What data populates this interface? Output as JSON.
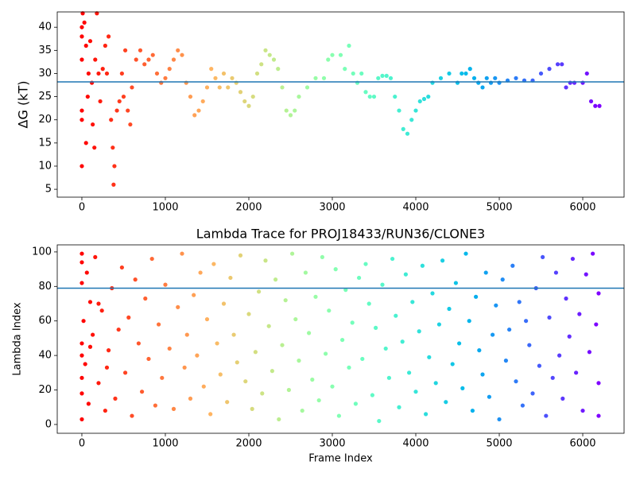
{
  "chart_data": [
    {
      "type": "scatter",
      "ylabel": "ΔG (kT)",
      "colormap": "rainbow_r",
      "hline": 28.2,
      "hline_color": "#1f77b4",
      "xlim": [
        -295,
        6495
      ],
      "xticks": [
        0,
        1000,
        2000,
        3000,
        4000,
        5000,
        6000
      ],
      "ylim": [
        3.3,
        43.3
      ],
      "yticks": [
        5,
        10,
        15,
        20,
        25,
        30,
        35,
        40
      ],
      "x": [
        0,
        0,
        0,
        0,
        0,
        0,
        10,
        30,
        50,
        50,
        70,
        80,
        100,
        120,
        130,
        150,
        160,
        180,
        200,
        220,
        250,
        280,
        300,
        320,
        350,
        370,
        380,
        390,
        420,
        450,
        480,
        500,
        520,
        550,
        580,
        600,
        650,
        700,
        750,
        800,
        850,
        900,
        950,
        1000,
        1050,
        1100,
        1150,
        1200,
        1250,
        1300,
        1350,
        1400,
        1450,
        1500,
        1550,
        1600,
        1650,
        1700,
        1750,
        1800,
        1850,
        1900,
        1950,
        2000,
        2050,
        2100,
        2150,
        2200,
        2250,
        2300,
        2350,
        2400,
        2450,
        2500,
        2550,
        2600,
        2700,
        2800,
        2900,
        2950,
        3000,
        3100,
        3150,
        3200,
        3250,
        3300,
        3350,
        3400,
        3450,
        3500,
        3550,
        3600,
        3650,
        3700,
        3750,
        3800,
        3850,
        3900,
        3950,
        4000,
        4050,
        4100,
        4150,
        4200,
        4300,
        4400,
        4500,
        4550,
        4600,
        4650,
        4700,
        4750,
        4800,
        4850,
        4900,
        4950,
        5000,
        5100,
        5200,
        5300,
        5400,
        5500,
        5600,
        5700,
        5750,
        5800,
        5850,
        5900,
        6000,
        6050,
        6100,
        6150,
        6200
      ],
      "values": [
        40,
        10,
        20,
        22,
        33,
        38,
        43,
        41,
        36,
        15,
        25,
        30,
        37,
        28,
        19,
        14,
        33,
        43,
        30,
        24,
        31,
        36,
        30,
        38,
        20,
        14,
        6,
        10,
        22,
        24,
        30,
        25,
        35,
        22,
        19,
        27,
        33,
        35,
        32,
        33,
        34,
        30,
        28,
        29,
        31,
        33,
        35,
        34,
        28,
        25,
        21,
        22,
        24,
        27,
        31,
        29,
        27,
        30,
        27,
        29,
        28,
        26,
        24,
        23,
        25,
        30,
        32,
        35,
        34,
        33,
        31,
        27,
        22,
        21,
        22,
        25,
        27,
        29,
        29,
        33,
        34,
        34,
        31,
        36,
        30,
        28,
        30,
        26,
        25,
        25,
        29,
        29.5,
        29.5,
        29,
        25,
        22,
        18,
        17,
        20,
        22,
        24,
        24.5,
        25,
        28,
        29,
        30,
        28,
        30,
        30,
        31,
        29,
        28,
        27,
        29,
        28,
        29,
        28,
        28.5,
        29,
        28.5,
        28.5,
        30,
        31,
        32,
        32,
        27,
        28,
        28,
        28,
        30,
        24,
        23,
        23
      ]
    },
    {
      "type": "scatter",
      "title": "Lambda Trace for PROJ18433/RUN36/CLONE3",
      "xlabel": "Frame Index",
      "ylabel": "Lambda Index",
      "colormap": "rainbow_r",
      "hline": 79,
      "hline_color": "#1f77b4",
      "xlim": [
        -295,
        6495
      ],
      "xticks": [
        0,
        1000,
        2000,
        3000,
        4000,
        5000,
        6000
      ],
      "ylim": [
        -5.1,
        104.1
      ],
      "yticks": [
        0,
        20,
        40,
        60,
        80,
        100
      ],
      "x": [
        0,
        0,
        0,
        0,
        0,
        20,
        40,
        60,
        80,
        100,
        130,
        160,
        200,
        240,
        280,
        320,
        360,
        400,
        440,
        480,
        520,
        560,
        600,
        640,
        680,
        720,
        760,
        800,
        840,
        880,
        920,
        960,
        1000,
        1050,
        1100,
        1150,
        1200,
        1230,
        1260,
        1300,
        1340,
        1380,
        1420,
        1460,
        1500,
        1540,
        1580,
        1620,
        1660,
        1700,
        1740,
        1780,
        1820,
        1860,
        1900,
        1960,
        2000,
        2040,
        2080,
        2120,
        2160,
        2200,
        2240,
        2280,
        2320,
        2360,
        2400,
        2440,
        2480,
        2520,
        2560,
        2600,
        2640,
        2680,
        2720,
        2760,
        2800,
        2840,
        2880,
        2920,
        2960,
        3000,
        3040,
        3080,
        3120,
        3160,
        3200,
        3240,
        3280,
        3320,
        3360,
        3400,
        3440,
        3480,
        3520,
        3560,
        3600,
        3640,
        3680,
        3720,
        3760,
        3800,
        3840,
        3880,
        3920,
        3960,
        4000,
        4040,
        4080,
        4120,
        4160,
        4200,
        4240,
        4280,
        4320,
        4360,
        4400,
        4440,
        4480,
        4520,
        4560,
        4600,
        4640,
        4680,
        4720,
        4760,
        4800,
        4840,
        4880,
        4920,
        4960,
        5000,
        5040,
        5080,
        5120,
        5160,
        5200,
        5240,
        5280,
        5320,
        5360,
        5400,
        5440,
        5480,
        5520,
        5560,
        5600,
        5640,
        5680,
        5720,
        5760,
        5800,
        5840,
        5880,
        5920,
        5960,
        6000,
        6040,
        6080,
        6120,
        6160,
        6190,
        6190,
        6190,
        0,
        0,
        0,
        100,
        200,
        300
      ],
      "values": [
        94,
        82,
        47,
        18,
        3,
        60,
        35,
        88,
        12,
        71,
        52,
        97,
        24,
        66,
        8,
        43,
        79,
        15,
        55,
        91,
        30,
        62,
        5,
        84,
        47,
        19,
        73,
        38,
        96,
        11,
        58,
        27,
        81,
        44,
        9,
        68,
        99,
        33,
        52,
        15,
        75,
        40,
        88,
        22,
        61,
        6,
        93,
        47,
        29,
        70,
        13,
        85,
        52,
        36,
        98,
        25,
        64,
        9,
        42,
        77,
        18,
        95,
        57,
        31,
        84,
        3,
        46,
        72,
        20,
        99,
        61,
        37,
        8,
        88,
        53,
        26,
        74,
        14,
        97,
        41,
        66,
        22,
        90,
        5,
        49,
        78,
        33,
        59,
        12,
        85,
        38,
        93,
        70,
        17,
        56,
        2,
        81,
        44,
        27,
        96,
        63,
        10,
        48,
        87,
        30,
        71,
        19,
        54,
        92,
        6,
        39,
        76,
        24,
        58,
        95,
        13,
        67,
        35,
        82,
        47,
        21,
        99,
        60,
        8,
        74,
        43,
        29,
        88,
        16,
        52,
        69,
        3,
        84,
        37,
        55,
        92,
        25,
        71,
        11,
        60,
        46,
        18,
        79,
        34,
        97,
        5,
        62,
        27,
        88,
        40,
        15,
        73,
        51,
        96,
        30,
        64,
        8,
        87,
        42,
        99,
        58,
        24,
        76,
        5,
        27,
        40,
        99,
        45,
        70,
        33
      ]
    }
  ]
}
